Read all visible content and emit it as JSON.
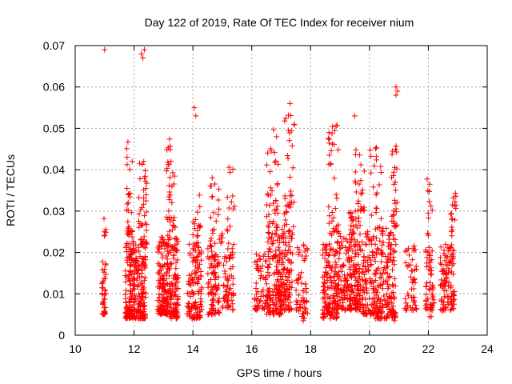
{
  "chart_data": {
    "type": "scatter",
    "title": "Day 122 of 2019, Rate Of TEC Index for receiver nium",
    "xlabel": "GPS time / hours",
    "ylabel": "ROTI / TECUs",
    "xlim": [
      10,
      24
    ],
    "ylim": [
      0,
      0.07
    ],
    "xticks": [
      10,
      12,
      14,
      16,
      18,
      20,
      22,
      24
    ],
    "xtick_labels": [
      "10",
      "12",
      "14",
      "16",
      "18",
      "20",
      "22",
      "24"
    ],
    "yticks": [
      0,
      0.01,
      0.02,
      0.03,
      0.04,
      0.05,
      0.06,
      0.07
    ],
    "ytick_labels": [
      "0",
      "0.01",
      "0.02",
      "0.03",
      "0.04",
      "0.05",
      "0.06",
      "0.07"
    ],
    "grid": true,
    "marker": "+",
    "color": "#ff0000",
    "series": [
      {
        "name": "ROTI",
        "clusters": [
          {
            "x": [
              10.9,
              11.05
            ],
            "y": [
              0.005,
              0.018
            ],
            "n": 40
          },
          {
            "x": [
              10.95,
              11.05
            ],
            "y": [
              0.024,
              0.031
            ],
            "n": 6
          },
          {
            "x": [
              11.7,
              12.0
            ],
            "y": [
              0.004,
              0.025
            ],
            "n": 140
          },
          {
            "x": [
              11.75,
              11.95
            ],
            "y": [
              0.025,
              0.05
            ],
            "n": 25
          },
          {
            "x": [
              12.0,
              12.4
            ],
            "y": [
              0.004,
              0.022
            ],
            "n": 140
          },
          {
            "x": [
              12.15,
              12.45
            ],
            "y": [
              0.022,
              0.044
            ],
            "n": 45
          },
          {
            "x": [
              12.8,
              13.2
            ],
            "y": [
              0.005,
              0.025
            ],
            "n": 150
          },
          {
            "x": [
              13.1,
              13.4
            ],
            "y": [
              0.025,
              0.049
            ],
            "n": 35
          },
          {
            "x": [
              13.2,
              13.5
            ],
            "y": [
              0.004,
              0.024
            ],
            "n": 110
          },
          {
            "x": [
              13.8,
              14.3
            ],
            "y": [
              0.004,
              0.022
            ],
            "n": 120
          },
          {
            "x": [
              14.0,
              14.3
            ],
            "y": [
              0.022,
              0.035
            ],
            "n": 20
          },
          {
            "x": [
              14.5,
              14.9
            ],
            "y": [
              0.005,
              0.022
            ],
            "n": 90
          },
          {
            "x": [
              14.55,
              15.0
            ],
            "y": [
              0.022,
              0.04
            ],
            "n": 25
          },
          {
            "x": [
              15.0,
              15.4
            ],
            "y": [
              0.006,
              0.02
            ],
            "n": 60
          },
          {
            "x": [
              15.15,
              15.45
            ],
            "y": [
              0.02,
              0.043
            ],
            "n": 18
          },
          {
            "x": [
              16.1,
              16.5
            ],
            "y": [
              0.006,
              0.02
            ],
            "n": 60
          },
          {
            "x": [
              16.5,
              17.0
            ],
            "y": [
              0.005,
              0.025
            ],
            "n": 140
          },
          {
            "x": [
              16.5,
              16.9
            ],
            "y": [
              0.025,
              0.051
            ],
            "n": 40
          },
          {
            "x": [
              17.0,
              17.4
            ],
            "y": [
              0.006,
              0.026
            ],
            "n": 110
          },
          {
            "x": [
              17.1,
              17.45
            ],
            "y": [
              0.026,
              0.056
            ],
            "n": 35
          },
          {
            "x": [
              17.5,
              17.9
            ],
            "y": [
              0.004,
              0.022
            ],
            "n": 60
          },
          {
            "x": [
              18.4,
              18.9
            ],
            "y": [
              0.004,
              0.022
            ],
            "n": 150
          },
          {
            "x": [
              18.6,
              18.95
            ],
            "y": [
              0.022,
              0.051
            ],
            "n": 40
          },
          {
            "x": [
              18.9,
              19.4
            ],
            "y": [
              0.006,
              0.025
            ],
            "n": 110
          },
          {
            "x": [
              19.3,
              19.7
            ],
            "y": [
              0.006,
              0.03
            ],
            "n": 130
          },
          {
            "x": [
              19.5,
              19.85
            ],
            "y": [
              0.03,
              0.045
            ],
            "n": 25
          },
          {
            "x": [
              19.75,
              20.2
            ],
            "y": [
              0.005,
              0.025
            ],
            "n": 110
          },
          {
            "x": [
              20.0,
              20.4
            ],
            "y": [
              0.025,
              0.047
            ],
            "n": 20
          },
          {
            "x": [
              20.2,
              20.9
            ],
            "y": [
              0.004,
              0.026
            ],
            "n": 190
          },
          {
            "x": [
              20.75,
              20.95
            ],
            "y": [
              0.026,
              0.047
            ],
            "n": 30
          },
          {
            "x": [
              21.2,
              21.6
            ],
            "y": [
              0.006,
              0.022
            ],
            "n": 50
          },
          {
            "x": [
              21.9,
              22.2
            ],
            "y": [
              0.006,
              0.022
            ],
            "n": 55
          },
          {
            "x": [
              21.95,
              22.15
            ],
            "y": [
              0.024,
              0.039
            ],
            "n": 12
          },
          {
            "x": [
              22.4,
              22.9
            ],
            "y": [
              0.006,
              0.022
            ],
            "n": 110
          },
          {
            "x": [
              22.75,
              22.95
            ],
            "y": [
              0.024,
              0.036
            ],
            "n": 18
          }
        ],
        "points": [
          {
            "x": 11.0,
            "y": 0.069
          },
          {
            "x": 12.25,
            "y": 0.068
          },
          {
            "x": 12.35,
            "y": 0.069
          },
          {
            "x": 12.3,
            "y": 0.067
          },
          {
            "x": 14.05,
            "y": 0.055
          },
          {
            "x": 14.1,
            "y": 0.053
          },
          {
            "x": 17.3,
            "y": 0.056
          },
          {
            "x": 19.5,
            "y": 0.053
          },
          {
            "x": 20.9,
            "y": 0.06
          },
          {
            "x": 20.95,
            "y": 0.059
          },
          {
            "x": 20.9,
            "y": 0.058
          },
          {
            "x": 22.05,
            "y": 0.0045
          },
          {
            "x": 22.1,
            "y": 0.0045
          },
          {
            "x": 20.85,
            "y": 0.0035
          },
          {
            "x": 17.75,
            "y": 0.0035
          }
        ]
      }
    ]
  }
}
